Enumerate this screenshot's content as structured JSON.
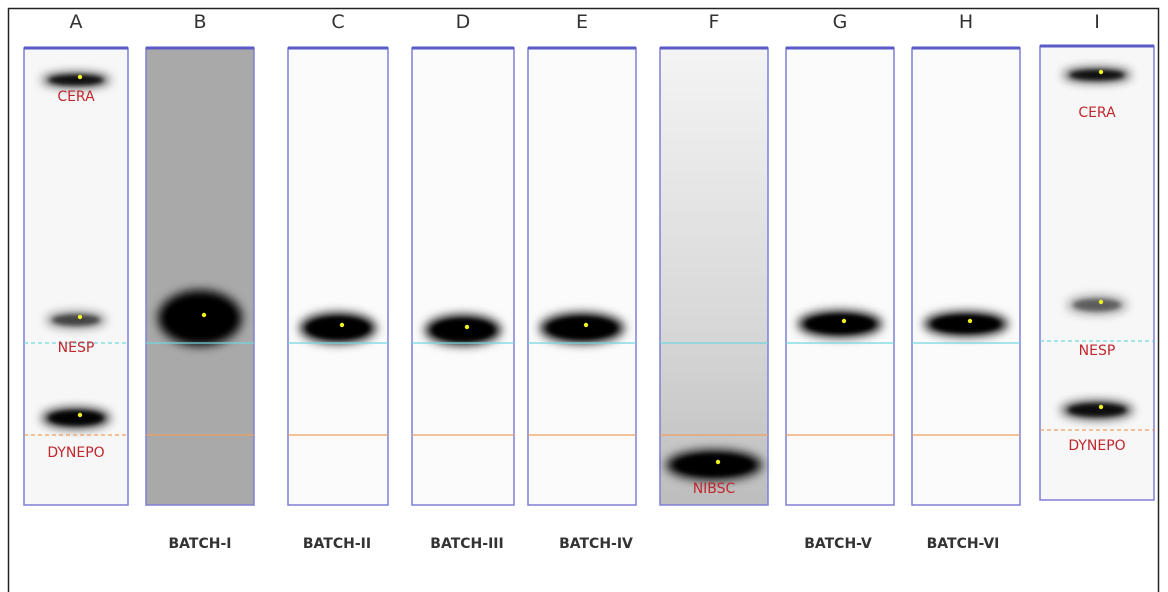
{
  "lanes": [
    {
      "letter": "A",
      "labels": [
        "CERA",
        "NESP",
        "DYNEPO"
      ]
    },
    {
      "letter": "B",
      "batch": "BATCH-I"
    },
    {
      "letter": "C",
      "batch": "BATCH-II"
    },
    {
      "letter": "D",
      "batch": "BATCH-III"
    },
    {
      "letter": "E",
      "batch": "BATCH-IV"
    },
    {
      "letter": "F",
      "labels": [
        "NIBSC"
      ]
    },
    {
      "letter": "G",
      "batch": "BATCH-V"
    },
    {
      "letter": "H",
      "batch": "BATCH-VI"
    },
    {
      "letter": "I",
      "labels": [
        "CERA",
        "NESP",
        "DYNEPO"
      ]
    }
  ]
}
